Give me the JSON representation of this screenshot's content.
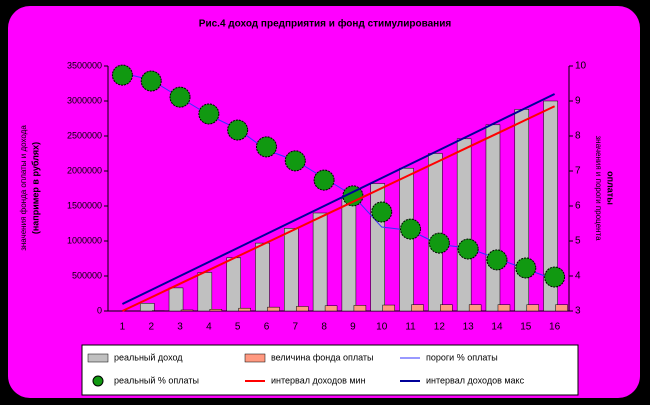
{
  "chart_data": {
    "type": "bar",
    "title": "Рис.4 доход предприятия и фонд стимулирования",
    "y_label": [
      "значения фонда оплаты и дохода",
      "(например в рублях)"
    ],
    "y2_label": [
      "значения и пороги процента",
      "оплаты"
    ],
    "categories": [
      "1",
      "2",
      "3",
      "4",
      "5",
      "6",
      "7",
      "8",
      "9",
      "10",
      "11",
      "12",
      "13",
      "14",
      "15",
      "16"
    ],
    "ylim": [
      0,
      3500000
    ],
    "yticks": [
      0,
      500000,
      1000000,
      1500000,
      2000000,
      2500000,
      3000000,
      3500000
    ],
    "y2lim": [
      3,
      10
    ],
    "y2ticks": [
      3,
      4,
      5,
      6,
      7,
      8,
      9,
      10
    ],
    "series": [
      {
        "name": "реальный доход",
        "type": "bar",
        "color": "#c0c0c0",
        "values": [
          0,
          110000,
          330000,
          550000,
          760000,
          970000,
          1180000,
          1400000,
          1610000,
          1820000,
          2040000,
          2250000,
          2460000,
          2660000,
          2880000,
          3000000
        ]
      },
      {
        "name": "величина фонда оплаты",
        "type": "bar",
        "color": "#ff9980",
        "values": [
          0,
          5000,
          15000,
          25000,
          40000,
          55000,
          65000,
          75000,
          80000,
          85000,
          90000,
          90000,
          90000,
          90000,
          90000,
          90000
        ]
      },
      {
        "name": "пороги % оплаты",
        "type": "line",
        "axis": "y2",
        "color": "#3333ff",
        "width": 1,
        "values": [
          9.8,
          9.6,
          9.1,
          8.6,
          8.2,
          7.6,
          7.3,
          6.8,
          6.3,
          5.4,
          5.3,
          4.9,
          4.8,
          4.5,
          4.2,
          3.9
        ]
      },
      {
        "name": "реальный % оплаты",
        "type": "scatter",
        "axis": "y2",
        "color": "#119911",
        "values": [
          9.74,
          9.57,
          9.11,
          8.63,
          8.17,
          7.69,
          7.29,
          6.74,
          6.29,
          5.83,
          5.34,
          4.94,
          4.77,
          4.46,
          4.23,
          3.97
        ]
      },
      {
        "name": "интервал доходов мин",
        "type": "line",
        "color": "#ff0000",
        "width": 2,
        "values": [
          0,
          195000,
          390000,
          585000,
          780000,
          975000,
          1170000,
          1365000,
          1560000,
          1755000,
          1950000,
          2145000,
          2340000,
          2535000,
          2730000,
          2925000
        ]
      },
      {
        "name": "интервал доходов макс",
        "type": "line",
        "color": "#000099",
        "width": 2,
        "values": [
          100000,
          300000,
          500000,
          700000,
          900000,
          1100000,
          1300000,
          1500000,
          1700000,
          1900000,
          2100000,
          2300000,
          2500000,
          2700000,
          2900000,
          3100000
        ]
      }
    ]
  }
}
